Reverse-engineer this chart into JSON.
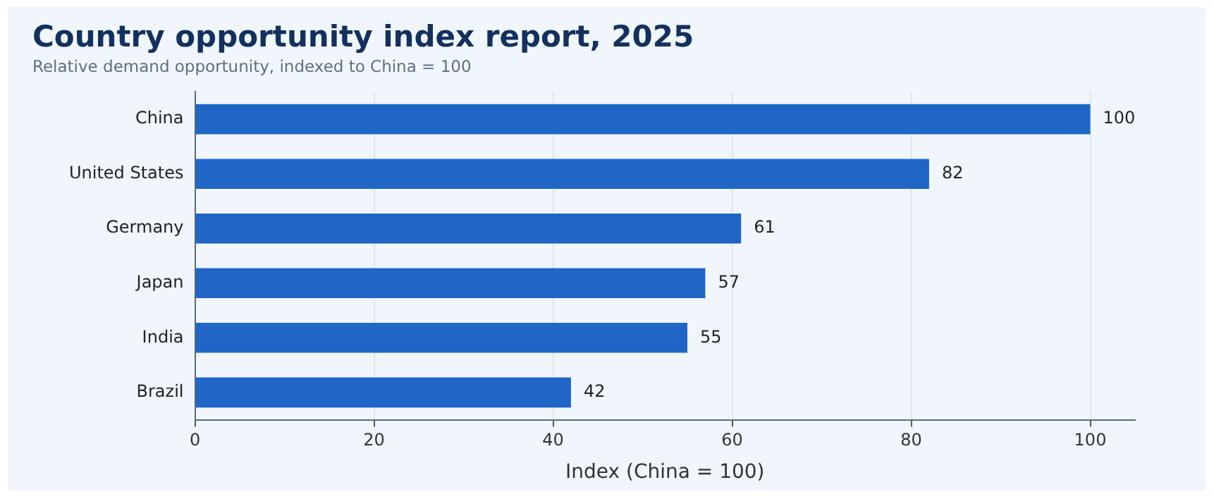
{
  "chart_data": {
    "type": "bar",
    "orientation": "horizontal",
    "title": "Country opportunity index report, 2025",
    "subtitle": "Relative demand opportunity, indexed to China = 100",
    "xlabel": "Index (China = 100)",
    "categories": [
      "China",
      "United States",
      "Germany",
      "Japan",
      "India",
      "Brazil"
    ],
    "values": [
      100,
      82,
      61,
      57,
      55,
      42
    ],
    "color": "#1f66c7",
    "xlim": [
      0,
      105
    ],
    "xticks": [
      0,
      20,
      40,
      60,
      80,
      100
    ],
    "grid": "x",
    "data_labels": true,
    "legend": false
  }
}
